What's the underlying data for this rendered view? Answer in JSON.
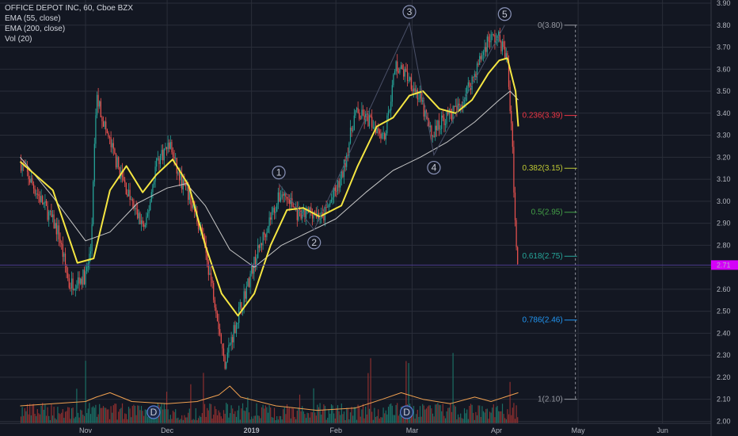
{
  "legend": {
    "title": "OFFICE DEPOT INC, 60, Cboe BZX",
    "ind1": "EMA (55, close)",
    "ind2": "EMA (200, close)",
    "ind3": "Vol (20)"
  },
  "colors": {
    "background": "#131722",
    "grid": "#2a2e39",
    "up": "#26a69a",
    "down": "#ef5350",
    "ema55": "#f5e642",
    "ema200": "#c8c8c8",
    "volume_ma": "#f0a050",
    "last_price": "#d500f9"
  },
  "chart_data": {
    "type": "candlestick",
    "title": "OFFICE DEPOT INC, 60, Cboe BZX",
    "ylim": [
      2.0,
      3.9
    ],
    "y_ticks": [
      "3.90",
      "3.80",
      "3.70",
      "3.60",
      "3.50",
      "3.40",
      "3.30",
      "3.20",
      "3.10",
      "3.00",
      "2.90",
      "2.80",
      "2.70",
      "2.60",
      "2.50",
      "2.40",
      "2.30",
      "2.20",
      "2.10",
      "2.00"
    ],
    "x_ticks": [
      "Nov",
      "Dec",
      "2019",
      "Feb",
      "Mar",
      "Apr",
      "May",
      "Jun"
    ],
    "last_price": "2.71",
    "price_path": [
      [
        "2018-10-08",
        3.18
      ],
      [
        "2018-10-15",
        3.02
      ],
      [
        "2018-10-22",
        2.86
      ],
      [
        "2018-10-26",
        2.62
      ],
      [
        "2018-11-01",
        2.66
      ],
      [
        "2018-11-03",
        2.78
      ],
      [
        "2018-11-05",
        3.48
      ],
      [
        "2018-11-09",
        3.3
      ],
      [
        "2018-11-14",
        3.12
      ],
      [
        "2018-11-19",
        2.96
      ],
      [
        "2018-11-23",
        2.87
      ],
      [
        "2018-11-27",
        3.18
      ],
      [
        "2018-12-02",
        3.26
      ],
      [
        "2018-12-05",
        3.12
      ],
      [
        "2018-12-10",
        3.0
      ],
      [
        "2018-12-14",
        2.84
      ],
      [
        "2018-12-19",
        2.52
      ],
      [
        "2018-12-22",
        2.26
      ],
      [
        "2018-12-27",
        2.48
      ],
      [
        "2019-01-02",
        2.72
      ],
      [
        "2019-01-07",
        2.9
      ],
      [
        "2019-01-12",
        3.04
      ],
      [
        "2019-01-15",
        3.0
      ],
      [
        "2019-01-19",
        2.92
      ],
      [
        "2019-01-23",
        2.96
      ],
      [
        "2019-01-27",
        2.92
      ],
      [
        "2019-02-03",
        3.1
      ],
      [
        "2019-02-08",
        3.4
      ],
      [
        "2019-02-14",
        3.36
      ],
      [
        "2019-02-19",
        3.3
      ],
      [
        "2019-02-23",
        3.62
      ],
      [
        "2019-02-28",
        3.56
      ],
      [
        "2019-03-04",
        3.46
      ],
      [
        "2019-03-08",
        3.3
      ],
      [
        "2019-03-13",
        3.38
      ],
      [
        "2019-03-18",
        3.42
      ],
      [
        "2019-03-24",
        3.58
      ],
      [
        "2019-03-29",
        3.74
      ],
      [
        "2019-04-02",
        3.74
      ],
      [
        "2019-04-05",
        3.64
      ],
      [
        "2019-04-07",
        3.2
      ],
      [
        "2019-04-08",
        2.85
      ],
      [
        "2019-04-09",
        2.71
      ]
    ],
    "series": [
      {
        "name": "EMA (55, close)",
        "points": [
          [
            "2018-10-08",
            3.18
          ],
          [
            "2018-10-20",
            3.05
          ],
          [
            "2018-10-29",
            2.72
          ],
          [
            "2018-11-04",
            2.74
          ],
          [
            "2018-11-10",
            3.05
          ],
          [
            "2018-11-16",
            3.16
          ],
          [
            "2018-11-22",
            3.04
          ],
          [
            "2018-11-27",
            3.12
          ],
          [
            "2018-12-03",
            3.19
          ],
          [
            "2018-12-09",
            3.07
          ],
          [
            "2018-12-15",
            2.8
          ],
          [
            "2018-12-21",
            2.58
          ],
          [
            "2018-12-27",
            2.48
          ],
          [
            "2019-01-02",
            2.58
          ],
          [
            "2019-01-08",
            2.8
          ],
          [
            "2019-01-14",
            2.96
          ],
          [
            "2019-01-20",
            2.97
          ],
          [
            "2019-01-26",
            2.93
          ],
          [
            "2019-02-03",
            2.98
          ],
          [
            "2019-02-09",
            3.16
          ],
          [
            "2019-02-16",
            3.34
          ],
          [
            "2019-02-22",
            3.38
          ],
          [
            "2019-02-28",
            3.48
          ],
          [
            "2019-03-05",
            3.5
          ],
          [
            "2019-03-11",
            3.42
          ],
          [
            "2019-03-17",
            3.4
          ],
          [
            "2019-03-23",
            3.46
          ],
          [
            "2019-03-29",
            3.58
          ],
          [
            "2019-04-02",
            3.64
          ],
          [
            "2019-04-05",
            3.65
          ],
          [
            "2019-04-08",
            3.5
          ],
          [
            "2019-04-09",
            3.34
          ]
        ]
      },
      {
        "name": "EMA (200, close)",
        "points": [
          [
            "2018-10-08",
            3.2
          ],
          [
            "2018-10-20",
            3.02
          ],
          [
            "2018-11-01",
            2.82
          ],
          [
            "2018-11-10",
            2.86
          ],
          [
            "2018-11-20",
            2.99
          ],
          [
            "2018-12-01",
            3.06
          ],
          [
            "2018-12-08",
            3.08
          ],
          [
            "2018-12-15",
            2.98
          ],
          [
            "2018-12-24",
            2.78
          ],
          [
            "2019-01-02",
            2.7
          ],
          [
            "2019-01-12",
            2.8
          ],
          [
            "2019-01-22",
            2.86
          ],
          [
            "2019-02-01",
            2.92
          ],
          [
            "2019-02-12",
            3.04
          ],
          [
            "2019-02-22",
            3.14
          ],
          [
            "2019-03-04",
            3.2
          ],
          [
            "2019-03-14",
            3.27
          ],
          [
            "2019-03-24",
            3.36
          ],
          [
            "2019-04-02",
            3.46
          ],
          [
            "2019-04-06",
            3.5
          ],
          [
            "2019-04-09",
            3.46
          ]
        ]
      }
    ],
    "volume_ma": [
      [
        "2018-10-08",
        2.07
      ],
      [
        "2018-10-20",
        2.08
      ],
      [
        "2018-11-01",
        2.09
      ],
      [
        "2018-11-05",
        2.11
      ],
      [
        "2018-11-10",
        2.13
      ],
      [
        "2018-11-18",
        2.09
      ],
      [
        "2018-12-01",
        2.08
      ],
      [
        "2018-12-12",
        2.09
      ],
      [
        "2018-12-20",
        2.12
      ],
      [
        "2018-12-24",
        2.16
      ],
      [
        "2018-12-28",
        2.11
      ],
      [
        "2019-01-10",
        2.07
      ],
      [
        "2019-01-25",
        2.05
      ],
      [
        "2019-02-08",
        2.06
      ],
      [
        "2019-02-18",
        2.1
      ],
      [
        "2019-02-25",
        2.13
      ],
      [
        "2019-03-05",
        2.1
      ],
      [
        "2019-03-15",
        2.08
      ],
      [
        "2019-03-24",
        2.11
      ],
      [
        "2019-03-30",
        2.09
      ],
      [
        "2019-04-09",
        2.13
      ]
    ],
    "elliott_waves": [
      {
        "label": "1",
        "date": "2019-01-11",
        "price": 3.08
      },
      {
        "label": "2",
        "date": "2019-01-24",
        "price": 2.87
      },
      {
        "label": "3",
        "date": "2019-02-28",
        "price": 3.81
      },
      {
        "label": "4",
        "date": "2019-03-09",
        "price": 3.21
      },
      {
        "label": "5",
        "date": "2019-04-04",
        "price": 3.8
      }
    ],
    "dividend_markers": [
      {
        "label": "D",
        "date": "2018-11-26"
      },
      {
        "label": "D",
        "date": "2019-02-27"
      }
    ],
    "fibonacci": {
      "start_date": "2019-04-09",
      "end_date": "2019-04-30",
      "levels": [
        {
          "label": "0(3.80)",
          "price": 3.8,
          "color": "#9598a1"
        },
        {
          "label": "0.236(3.39)",
          "price": 3.39,
          "color": "#f23645"
        },
        {
          "label": "0.382(3.15)",
          "price": 3.15,
          "color": "#c0ca33"
        },
        {
          "label": "0.5(2.95)",
          "price": 2.95,
          "color": "#43a047"
        },
        {
          "label": "0.618(2.75)",
          "price": 2.75,
          "color": "#26a69a"
        },
        {
          "label": "0.786(2.46)",
          "price": 2.46,
          "color": "#2196f3"
        },
        {
          "label": "1(2.10)",
          "price": 2.1,
          "color": "#9598a1"
        }
      ]
    }
  }
}
